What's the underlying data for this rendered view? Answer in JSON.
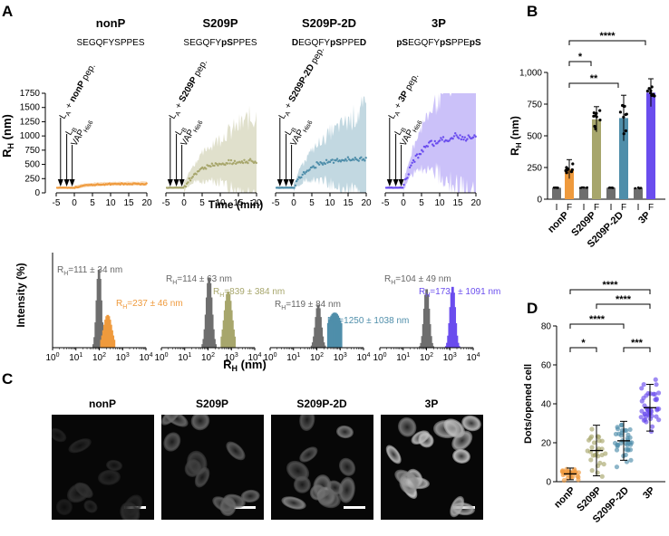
{
  "panels": {
    "a": "A",
    "b": "B",
    "c": "C",
    "d": "D"
  },
  "constructs": [
    {
      "name": "nonP",
      "seq": [
        [
          "SEGQFYSPPES",
          false
        ]
      ],
      "pep_bold": "nonP",
      "pep_suffix": " pep.",
      "color": "#ef9a3d"
    },
    {
      "name": "S209P",
      "seq": [
        [
          "SEGQFY",
          false
        ],
        [
          "pS",
          true
        ],
        [
          "PPES",
          false
        ]
      ],
      "pep_bold": "S209P",
      "pep_suffix": " pep.",
      "color": "#a7a66c"
    },
    {
      "name": "S209P-2D",
      "seq": [
        [
          "D",
          true
        ],
        [
          "EGQFY",
          false
        ],
        [
          "pS",
          true
        ],
        [
          "P",
          false
        ],
        [
          "P",
          false
        ],
        [
          "E",
          false
        ],
        [
          "D",
          true
        ]
      ],
      "pep_bold": "S209P-2D",
      "pep_suffix": " pep.",
      "color": "#4f8eaa"
    },
    {
      "name": "3P",
      "seq": [
        [
          "pS",
          true
        ],
        [
          "EGQFY",
          false
        ],
        [
          "pS",
          true
        ],
        [
          "P",
          false
        ],
        [
          "PE",
          false
        ],
        [
          "pS",
          true
        ]
      ],
      "pep_bold": "3P",
      "pep_suffix": " pep.",
      "color": "#6a4dee"
    }
  ],
  "injection_labels": {
    "la": "L",
    "la_sub": "A",
    "plus": " + ",
    "lb": "L",
    "lb_sub": "B",
    "vap": "VAP",
    "vap_sub": "His6"
  },
  "kinetics": {
    "ylabel_main": "R",
    "ylabel_sub": "H",
    "ylabel_unit": " (nm)",
    "yticks": [
      0,
      250,
      500,
      750,
      1000,
      1250,
      1500,
      1750
    ],
    "xticks": [
      -5,
      0,
      5,
      10,
      15,
      20
    ],
    "xlabel": "Time (min)",
    "final_means": [
      160,
      550,
      600,
      1000
    ]
  },
  "histograms": {
    "ylabel": "Intensity (%)",
    "xlabel_main": "R",
    "xlabel_sub": "H",
    "xlabel_unit": " (nm)",
    "xtick_base": "10",
    "xtick_exps": [
      "0",
      "1",
      "2",
      "3",
      "4"
    ],
    "labels": [
      {
        "initial": "=111 ± 34 nm",
        "final": "=237 ± 46 nm"
      },
      {
        "initial": "=114 ± 63 nm",
        "final": "=839 ± 384 nm"
      },
      {
        "initial": "=119 ± 84 nm",
        "final": "=1250 ± 1038 nm"
      },
      {
        "initial": "=104 ± 49 nm",
        "final": "=1731 ± 1091 nm"
      }
    ],
    "rh_main": "R",
    "rh_sub": "H"
  },
  "chart_data": [
    {
      "type": "bar",
      "panel": "B",
      "title": "",
      "ylabel": "R_H (nm)",
      "ylim": [
        0,
        1000
      ],
      "yticks": [
        "0",
        "250",
        "500",
        "750",
        "1,000"
      ],
      "categories": [
        "nonP",
        "S209P",
        "S209P-2D",
        "3P"
      ],
      "bar_sublabels": [
        "I",
        "F"
      ],
      "series": [
        {
          "name": "I",
          "values": [
            90,
            92,
            90,
            88
          ]
        },
        {
          "name": "F",
          "values": [
            237,
            630,
            640,
            840
          ]
        }
      ],
      "sd_final": [
        75,
        100,
        180,
        110
      ],
      "significance": [
        "*",
        "**",
        "****"
      ]
    },
    {
      "type": "scatter",
      "panel": "D",
      "ylabel": "Dots/opened cell",
      "ylim": [
        0,
        80
      ],
      "yticks": [
        "0",
        "20",
        "40",
        "60",
        "80"
      ],
      "categories": [
        "nonP",
        "S209P",
        "S209P-2D",
        "3P"
      ],
      "means": [
        4,
        16,
        21,
        38
      ],
      "sd": [
        3,
        13,
        10,
        12
      ],
      "significance": [
        "****",
        "****",
        "****",
        "*",
        "***"
      ]
    }
  ]
}
